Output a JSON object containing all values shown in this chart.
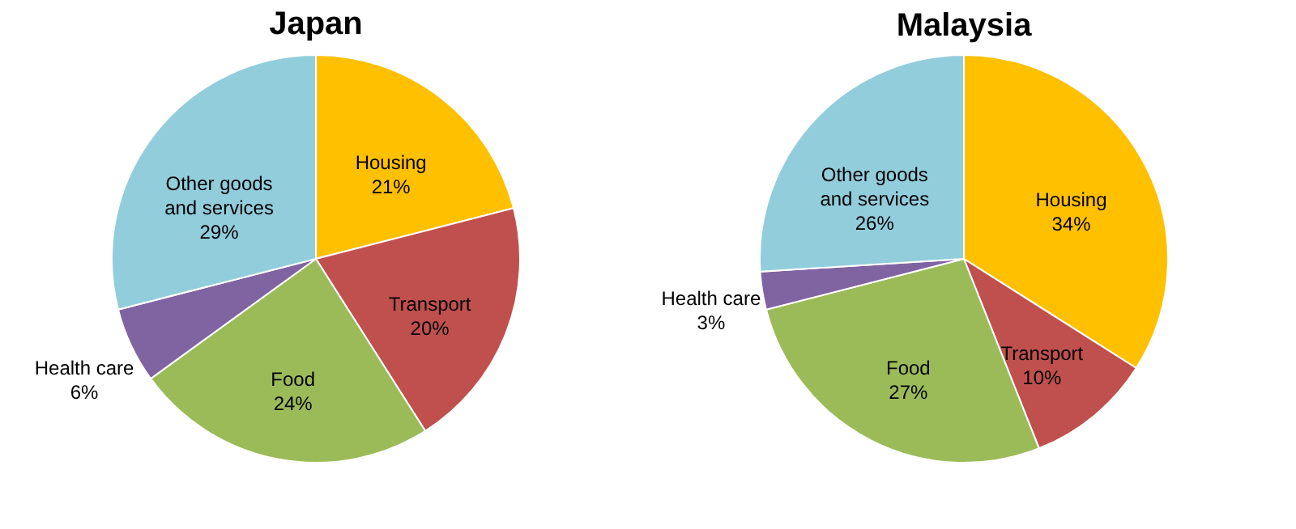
{
  "chart_data": [
    {
      "type": "pie",
      "title": "Japan",
      "categories": [
        "Housing",
        "Transport",
        "Food",
        "Health care",
        "Other goods and services"
      ],
      "values": [
        21,
        20,
        24,
        6,
        29
      ],
      "value_labels": [
        "21%",
        "20%",
        "24%",
        "6%",
        "29%"
      ],
      "colors": [
        "#ffc000",
        "#c0504d",
        "#9bbb59",
        "#8064a2",
        "#92cddc"
      ],
      "legend": false
    },
    {
      "type": "pie",
      "title": "Malaysia",
      "categories": [
        "Housing",
        "Transport",
        "Food",
        "Health care",
        "Other goods and services"
      ],
      "values": [
        34,
        10,
        27,
        3,
        26
      ],
      "value_labels": [
        "34%",
        "10%",
        "27%",
        "3%",
        "26%"
      ],
      "colors": [
        "#ffc000",
        "#c0504d",
        "#9bbb59",
        "#8064a2",
        "#92cddc"
      ],
      "legend": false
    }
  ]
}
